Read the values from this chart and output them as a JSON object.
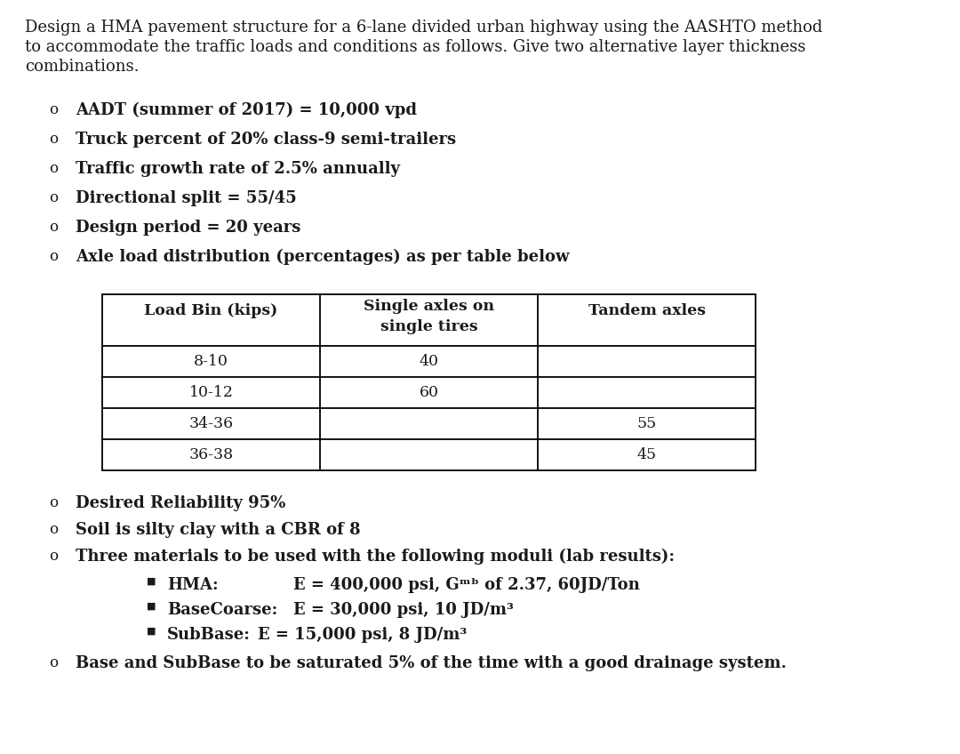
{
  "title_lines": [
    "Design a HMA pavement structure for a 6-lane divided urban highway using the AASHTO method",
    "to accommodate the traffic loads and conditions as follows. Give two alternative layer thickness",
    "combinations."
  ],
  "bullet_items": [
    "AADT (summer of 2017) = 10,000 vpd",
    "Truck percent of 20% class-9 semi-trailers",
    "Traffic growth rate of 2.5% annually",
    "Directional split = 55/45",
    "Design period = 20 years",
    "Axle load distribution (percentages) as per table below"
  ],
  "table_headers": [
    "Load Bin (kips)",
    "Single axles on\nsingle tires",
    "Tandem axles"
  ],
  "table_rows": [
    [
      "8-10",
      "40",
      ""
    ],
    [
      "10-12",
      "60",
      ""
    ],
    [
      "34-36",
      "",
      "55"
    ],
    [
      "36-38",
      "",
      "45"
    ]
  ],
  "after_table_bullets": [
    "Desired Reliability 95%",
    "Soil is silty clay with a CBR of 8",
    "Three materials to be used with the following moduli (lab results):"
  ],
  "sub_bullets": [
    {
      "label": "HMA:        ",
      "text": "E = 400,000 psi, Gᵐᵇ of 2.37, 60JD/Ton"
    },
    {
      "label": "BaseCoarse: ",
      "text": "E = 30,000 psi, 10 JD/m³"
    },
    {
      "label": "SubBase:    ",
      "text": "E = 15,000 psi, 8 JD/m³"
    }
  ],
  "last_bullet": "Base and SubBase to be saturated 5% of the time with a good drainage system.",
  "background_color": "#ffffff",
  "text_color": "#1a1a1a",
  "font_size": 13.0,
  "font_size_table": 12.5,
  "font_family": "DejaVu Serif"
}
